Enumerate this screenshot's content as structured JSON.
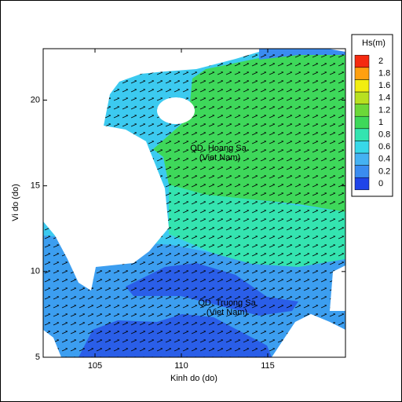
{
  "chart_data": {
    "type": "contour",
    "x_label": "Kinh do (do)",
    "y_label": "Vi do (do)",
    "xlim": [
      102,
      119.5
    ],
    "xticks": [
      105,
      110,
      115
    ],
    "ylim": [
      5,
      23
    ],
    "yticks": [
      5,
      10,
      15,
      20
    ],
    "colorbar": {
      "title": "Hs(m)",
      "ticks": [
        0,
        0.2,
        0.4,
        0.6,
        0.8,
        1,
        1.2,
        1.4,
        1.6,
        1.8,
        2
      ],
      "colors": [
        "#1f44e8",
        "#3a8cf0",
        "#45b2f2",
        "#38d8e8",
        "#34e4b0",
        "#3ed85a",
        "#6cd838",
        "#b8e020",
        "#f2ee10",
        "#ffa010",
        "#f52a10"
      ]
    },
    "annotations": [
      "QD. Hoang Sa",
      "(Viet Nam)",
      "QD. Truong Sa",
      "(Viet Nam)"
    ]
  }
}
